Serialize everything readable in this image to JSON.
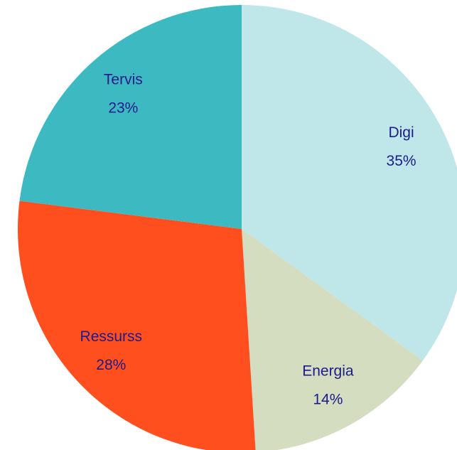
{
  "chart_data": {
    "type": "pie",
    "categories": [
      "Digi",
      "Energia",
      "Ressurss",
      "Tervis"
    ],
    "values": [
      35,
      14,
      28,
      23
    ],
    "value_labels": [
      "35%",
      "14%",
      "28%",
      "23%"
    ],
    "colors": [
      "#bfe6e8",
      "#d5ddc1",
      "#ff4f1f",
      "#3db9c1"
    ]
  }
}
